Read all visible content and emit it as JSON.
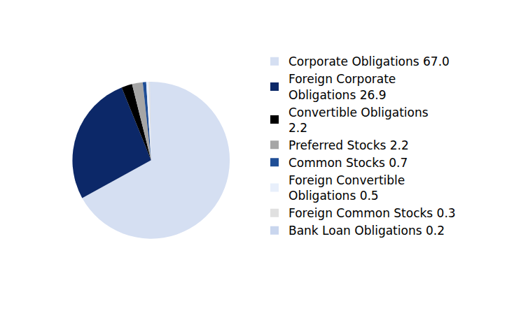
{
  "chart_data": {
    "type": "pie",
    "categories": [
      "Corporate Obligations 67.0",
      "Foreign Corporate Obligations 26.9",
      "Convertible Obligations 2.2",
      "Preferred Stocks 2.2",
      "Common Stocks 0.7",
      "Foreign Convertible Obligations 0.5",
      "Foreign Common Stocks 0.3",
      "Bank Loan Obligations 0.2"
    ],
    "values": [
      67.0,
      26.9,
      2.2,
      2.2,
      0.7,
      0.5,
      0.3,
      0.2
    ],
    "colors": [
      "#d5dff2",
      "#0c2868",
      "#000000",
      "#a6a6a6",
      "#1f4e96",
      "#e8effb",
      "#e0e0e0",
      "#c9d6ee"
    ],
    "legend": "right"
  }
}
